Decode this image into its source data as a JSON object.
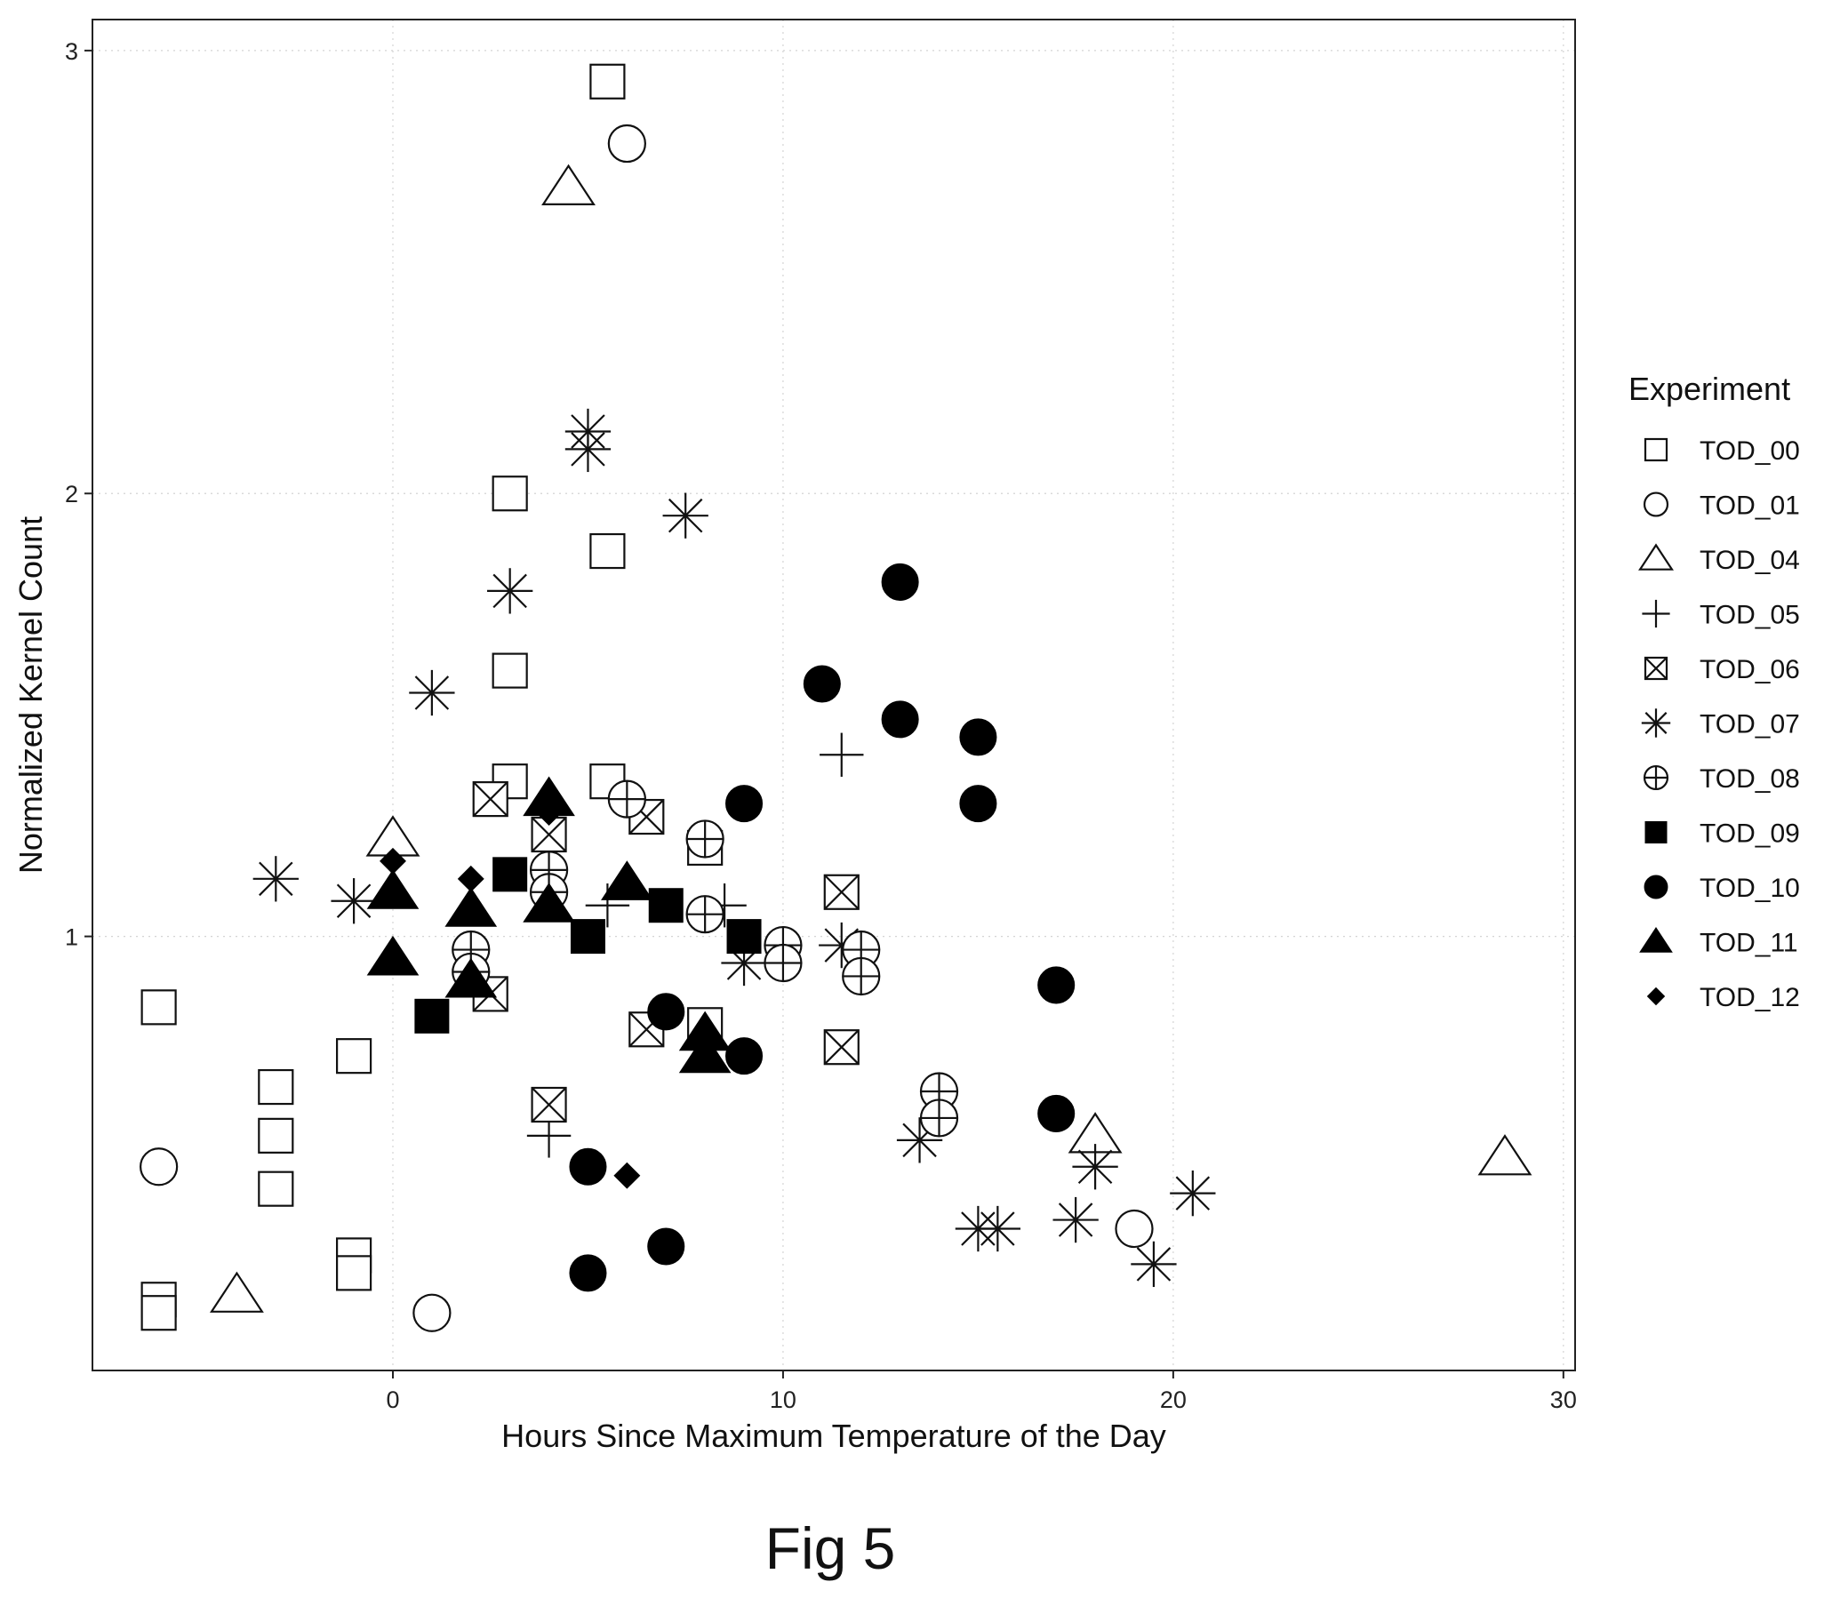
{
  "caption": "Fig 5",
  "chart_data": {
    "type": "scatter",
    "title": "",
    "xlabel": "Hours Since Maximum Temperature of the Day",
    "ylabel": "Normalized Kernel Count",
    "xlim": [
      -7.7,
      30.3
    ],
    "ylim": [
      0.02,
      3.07
    ],
    "xticks": [
      0,
      10,
      20,
      30
    ],
    "yticks": [
      1,
      2,
      3
    ],
    "grid": "faint major gridlines",
    "legend": {
      "title": "Experiment",
      "placement": "right"
    },
    "series": [
      {
        "name": "TOD_00",
        "shape": "square-open",
        "points": [
          [
            5.5,
            2.93
          ],
          [
            3,
            2.0
          ],
          [
            5.5,
            1.87
          ],
          [
            3,
            1.6
          ],
          [
            3,
            1.35
          ],
          [
            5.5,
            1.35
          ],
          [
            8,
            1.2
          ],
          [
            8,
            0.8
          ],
          [
            -6,
            0.84
          ],
          [
            -1,
            0.73
          ],
          [
            -3,
            0.66
          ],
          [
            -3,
            0.55
          ],
          [
            -3,
            0.43
          ],
          [
            -1,
            0.28
          ],
          [
            -1,
            0.24
          ],
          [
            -6,
            0.18
          ],
          [
            -6,
            0.15
          ]
        ]
      },
      {
        "name": "TOD_01",
        "shape": "circle-open",
        "points": [
          [
            6,
            2.79
          ],
          [
            -6,
            0.48
          ],
          [
            1,
            0.15
          ],
          [
            19,
            0.34
          ]
        ]
      },
      {
        "name": "TOD_04",
        "shape": "triangle-open",
        "points": [
          [
            4.5,
            2.69
          ],
          [
            0,
            1.22
          ],
          [
            -4,
            0.19
          ],
          [
            18,
            0.55
          ],
          [
            28.5,
            0.5
          ]
        ]
      },
      {
        "name": "TOD_05",
        "shape": "plus",
        "points": [
          [
            11.5,
            1.41
          ],
          [
            5.5,
            1.07
          ],
          [
            8.5,
            1.07
          ],
          [
            4,
            0.55
          ]
        ]
      },
      {
        "name": "TOD_06",
        "shape": "square-cross",
        "points": [
          [
            2.5,
            1.31
          ],
          [
            6.5,
            1.27
          ],
          [
            4,
            1.23
          ],
          [
            11.5,
            1.1
          ],
          [
            2.5,
            0.87
          ],
          [
            6.5,
            0.79
          ],
          [
            11.5,
            0.75
          ],
          [
            4,
            0.62
          ]
        ]
      },
      {
        "name": "TOD_07",
        "shape": "asterisk",
        "points": [
          [
            5,
            2.14
          ],
          [
            5,
            2.1
          ],
          [
            7.5,
            1.95
          ],
          [
            3,
            1.78
          ],
          [
            1,
            1.55
          ],
          [
            -3,
            1.13
          ],
          [
            -1,
            1.08
          ],
          [
            9,
            0.94
          ],
          [
            11.5,
            0.98
          ],
          [
            13.5,
            0.54
          ],
          [
            18,
            0.48
          ],
          [
            20.5,
            0.42
          ],
          [
            15,
            0.34
          ],
          [
            15.5,
            0.34
          ],
          [
            17.5,
            0.36
          ],
          [
            19.5,
            0.26
          ]
        ]
      },
      {
        "name": "TOD_08",
        "shape": "circle-plus",
        "points": [
          [
            6,
            1.31
          ],
          [
            8,
            1.22
          ],
          [
            4,
            1.15
          ],
          [
            4,
            1.1
          ],
          [
            8,
            1.05
          ],
          [
            2,
            0.97
          ],
          [
            2,
            0.92
          ],
          [
            10,
            0.98
          ],
          [
            10,
            0.94
          ],
          [
            12,
            0.97
          ],
          [
            12,
            0.91
          ],
          [
            14,
            0.65
          ],
          [
            14,
            0.59
          ]
        ]
      },
      {
        "name": "TOD_09",
        "shape": "square-filled",
        "points": [
          [
            3,
            1.14
          ],
          [
            7,
            1.07
          ],
          [
            5,
            1.0
          ],
          [
            9,
            1.0
          ],
          [
            1,
            0.82
          ]
        ]
      },
      {
        "name": "TOD_10",
        "shape": "circle-filled",
        "points": [
          [
            13,
            1.8
          ],
          [
            11,
            1.57
          ],
          [
            13,
            1.49
          ],
          [
            15,
            1.45
          ],
          [
            9,
            1.3
          ],
          [
            15,
            1.3
          ],
          [
            17,
            0.89
          ],
          [
            7,
            0.83
          ],
          [
            9,
            0.73
          ],
          [
            17,
            0.6
          ],
          [
            5,
            0.48
          ],
          [
            7,
            0.3
          ],
          [
            5,
            0.24
          ]
        ]
      },
      {
        "name": "TOD_11",
        "shape": "triangle-filled",
        "points": [
          [
            4,
            1.31
          ],
          [
            6,
            1.12
          ],
          [
            0,
            1.1
          ],
          [
            2,
            1.06
          ],
          [
            4,
            1.07
          ],
          [
            0,
            0.95
          ],
          [
            2,
            0.9
          ],
          [
            8,
            0.78
          ],
          [
            8,
            0.73
          ]
        ]
      },
      {
        "name": "TOD_12",
        "shape": "diamond-filled",
        "points": [
          [
            4,
            1.28
          ],
          [
            0,
            1.17
          ],
          [
            2,
            1.13
          ],
          [
            6,
            0.46
          ]
        ]
      }
    ]
  }
}
